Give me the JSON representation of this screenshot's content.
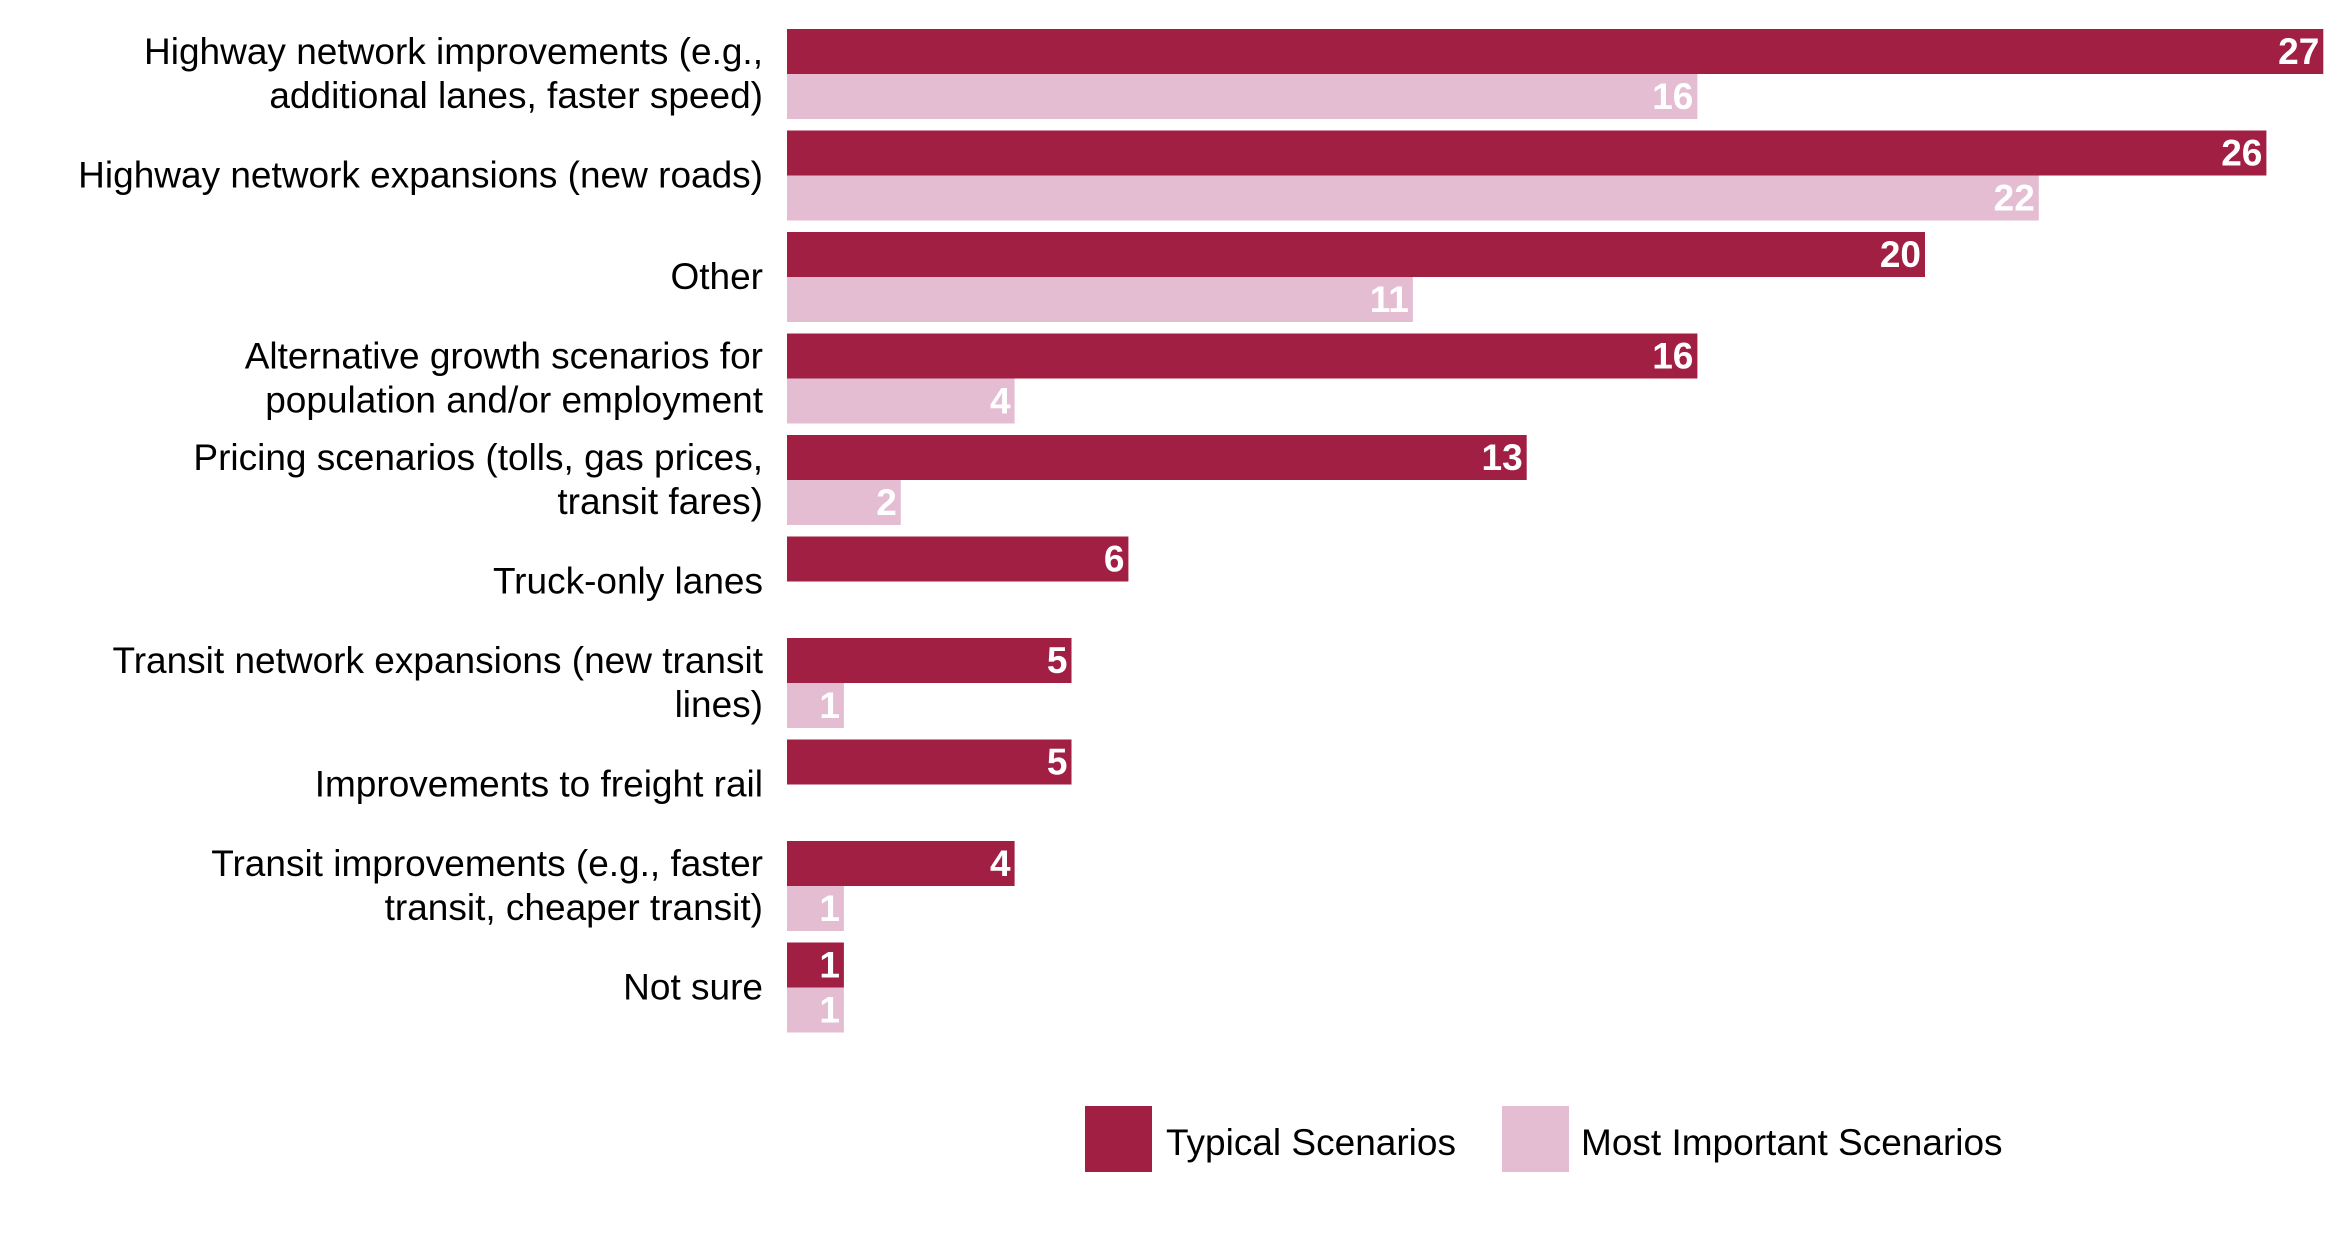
{
  "chart_data": {
    "type": "bar",
    "orientation": "horizontal",
    "categories": [
      [
        "Highway network improvements (e.g.,",
        "additional lanes, faster speed)"
      ],
      [
        "Highway network expansions (new roads)"
      ],
      [
        "Other"
      ],
      [
        "Alternative growth scenarios for",
        "population and/or employment"
      ],
      [
        "Pricing scenarios (tolls, gas prices,",
        "transit fares)"
      ],
      [
        "Truck-only lanes"
      ],
      [
        "Transit network expansions (new transit",
        "lines)"
      ],
      [
        "Improvements to freight rail"
      ],
      [
        "Transit improvements (e.g., faster",
        "transit, cheaper transit)"
      ],
      [
        "Not sure"
      ]
    ],
    "series": [
      {
        "name": "Typical Scenarios",
        "color": "#A01F43",
        "values": [
          27,
          26,
          20,
          16,
          13,
          6,
          5,
          5,
          4,
          1
        ]
      },
      {
        "name": "Most Important Scenarios",
        "color": "#E5BDD3",
        "values": [
          16,
          22,
          11,
          4,
          2,
          null,
          1,
          null,
          1,
          1
        ]
      }
    ],
    "xlim": [
      0,
      27
    ],
    "grid": false,
    "legend_position": "bottom",
    "data_labels": true
  }
}
